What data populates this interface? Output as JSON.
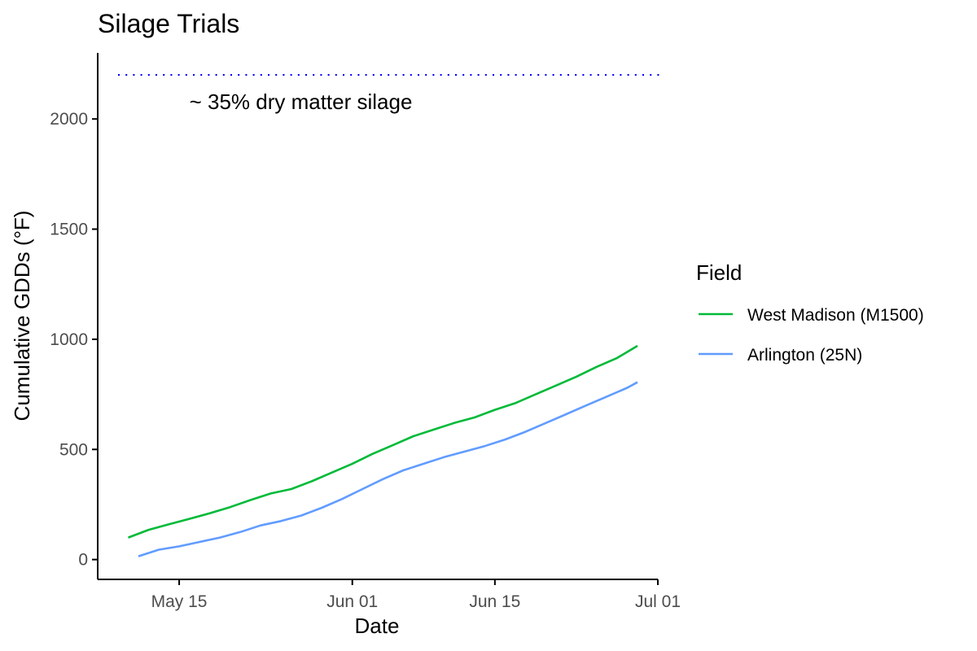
{
  "chart_data": {
    "type": "line",
    "title": "Silage Trials",
    "xlabel": "Date",
    "ylabel": "Cumulative GDDs (°F)",
    "x_tick_labels": [
      "May 15",
      "Jun 01",
      "Jun 15",
      "Jul 01"
    ],
    "x_tick_dates": [
      "2023-05-15",
      "2023-06-01",
      "2023-06-15",
      "2023-07-01"
    ],
    "xlim": [
      "2023-05-07",
      "2023-07-01"
    ],
    "ylim": [
      -90,
      2300
    ],
    "y_ticks": [
      0,
      500,
      1000,
      1500,
      2000
    ],
    "grid": false,
    "legend": {
      "title": "Field",
      "position": "right"
    },
    "reference_line": {
      "y": 2200,
      "style": "dotted",
      "color": "#0000ff"
    },
    "annotation": {
      "text": "~ 35% dry matter silage",
      "x": "2023-05-16",
      "y": 2045
    },
    "series": [
      {
        "name": "West Madison (M1500)",
        "color": "#00ba38",
        "points": [
          [
            "2023-05-10",
            100
          ],
          [
            "2023-05-12",
            135
          ],
          [
            "2023-05-14",
            160
          ],
          [
            "2023-05-16",
            185
          ],
          [
            "2023-05-18",
            210
          ],
          [
            "2023-05-20",
            238
          ],
          [
            "2023-05-22",
            270
          ],
          [
            "2023-05-24",
            300
          ],
          [
            "2023-05-26",
            320
          ],
          [
            "2023-05-28",
            355
          ],
          [
            "2023-05-30",
            395
          ],
          [
            "2023-06-01",
            435
          ],
          [
            "2023-06-03",
            480
          ],
          [
            "2023-06-05",
            520
          ],
          [
            "2023-06-07",
            560
          ],
          [
            "2023-06-09",
            590
          ],
          [
            "2023-06-11",
            620
          ],
          [
            "2023-06-13",
            645
          ],
          [
            "2023-06-15",
            680
          ],
          [
            "2023-06-17",
            710
          ],
          [
            "2023-06-19",
            750
          ],
          [
            "2023-06-21",
            790
          ],
          [
            "2023-06-23",
            830
          ],
          [
            "2023-06-25",
            875
          ],
          [
            "2023-06-27",
            915
          ],
          [
            "2023-06-29",
            970
          ]
        ]
      },
      {
        "name": "Arlington (25N)",
        "color": "#619cff",
        "points": [
          [
            "2023-05-11",
            15
          ],
          [
            "2023-05-13",
            45
          ],
          [
            "2023-05-15",
            60
          ],
          [
            "2023-05-17",
            80
          ],
          [
            "2023-05-19",
            100
          ],
          [
            "2023-05-21",
            125
          ],
          [
            "2023-05-23",
            155
          ],
          [
            "2023-05-25",
            175
          ],
          [
            "2023-05-27",
            200
          ],
          [
            "2023-05-29",
            235
          ],
          [
            "2023-05-31",
            275
          ],
          [
            "2023-06-02",
            320
          ],
          [
            "2023-06-04",
            365
          ],
          [
            "2023-06-06",
            405
          ],
          [
            "2023-06-08",
            435
          ],
          [
            "2023-06-10",
            465
          ],
          [
            "2023-06-12",
            490
          ],
          [
            "2023-06-14",
            515
          ],
          [
            "2023-06-16",
            545
          ],
          [
            "2023-06-18",
            580
          ],
          [
            "2023-06-20",
            620
          ],
          [
            "2023-06-22",
            660
          ],
          [
            "2023-06-24",
            700
          ],
          [
            "2023-06-26",
            740
          ],
          [
            "2023-06-28",
            780
          ],
          [
            "2023-06-29",
            805
          ]
        ]
      }
    ]
  }
}
